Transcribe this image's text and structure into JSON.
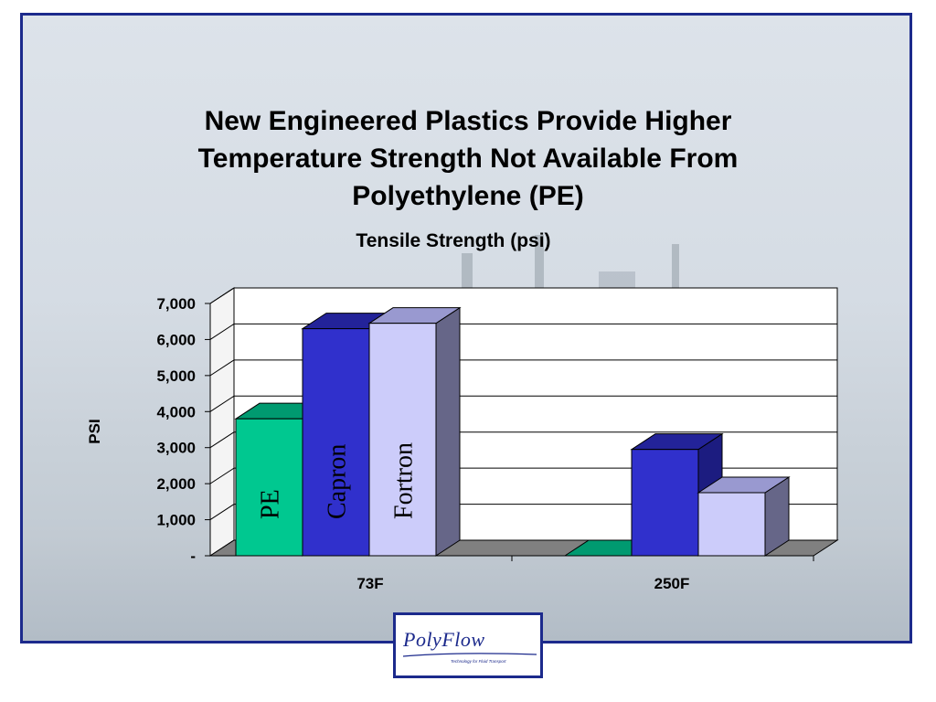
{
  "slide": {
    "title_lines": [
      "New Engineered Plastics Provide Higher",
      "Temperature Strength Not Available From",
      "Polyethylene (PE)"
    ]
  },
  "logo": {
    "name": "PolyFlow",
    "tagline": "Technology for Fluid Transport"
  },
  "chart_data": {
    "type": "bar",
    "title": "Tensile Strength (psi)",
    "ylabel": "PSI",
    "xlabel": "",
    "categories": [
      "73F",
      "250F"
    ],
    "series": [
      {
        "name": "PE",
        "values": [
          3800,
          0
        ],
        "color": "#00c890",
        "top_color": "#009a70",
        "side_color": "#007a58"
      },
      {
        "name": "Capron",
        "values": [
          6300,
          2950
        ],
        "color": "#3030cc",
        "top_color": "#232399",
        "side_color": "#1c1c80"
      },
      {
        "name": "Fortron",
        "values": [
          6450,
          1750
        ],
        "color": "#ccccfa",
        "top_color": "#9999d0",
        "side_color": "#666688"
      }
    ],
    "ylim": [
      0,
      7000
    ],
    "yticks": [
      0,
      1000,
      2000,
      3000,
      4000,
      5000,
      6000,
      7000
    ],
    "ytick_labels": [
      "-",
      "1,000",
      "2,000",
      "3,000",
      "4,000",
      "5,000",
      "6,000",
      "7,000"
    ],
    "grid": true,
    "legend": "none (series names written inside bars)",
    "colors": {
      "floor": "#808080",
      "wall": "#ffffff"
    }
  }
}
